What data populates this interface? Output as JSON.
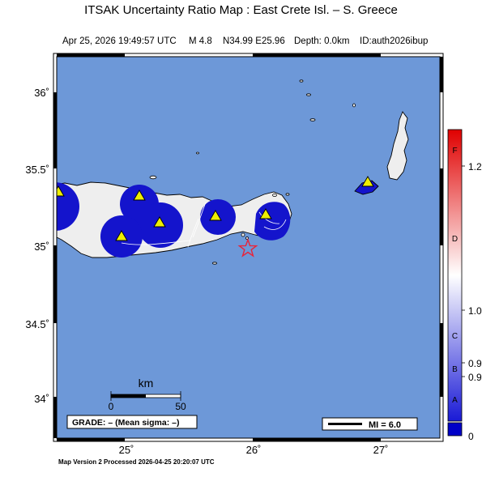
{
  "header": {
    "title": "ITSAK Uncertainty Ratio Map : East Crete Isl. – S. Greece",
    "datetime": "Apr 25, 2026 19:49:57 UTC",
    "magnitude": "M 4.8",
    "location": "N34.99 E25.96",
    "depth": "Depth: 0.0km",
    "event_id": "ID:auth2026ibup"
  },
  "map": {
    "lat_labels": [
      "36˚",
      "35.5˚",
      "35˚",
      "34.5˚",
      "34˚"
    ],
    "lon_labels": [
      "25˚",
      "26˚",
      "27˚"
    ],
    "sea_color": "#6d98d8",
    "land_color": "#eeeeee",
    "uncertainty_color": "#1414cc",
    "stations": [
      {
        "name": "station-triangle"
      },
      {
        "name": "station-triangle"
      },
      {
        "name": "station-triangle"
      },
      {
        "name": "station-triangle"
      },
      {
        "name": "station-triangle"
      },
      {
        "name": "station-triangle"
      },
      {
        "name": "station-triangle"
      }
    ],
    "epicenter_icon": "star-icon"
  },
  "scalebar": {
    "unit": "km",
    "label_start": "0",
    "label_end": "50"
  },
  "grade": {
    "label": "GRADE: – (Mean sigma: –)"
  },
  "legend": {
    "mi_label": "MI = 6.0"
  },
  "colorbar": {
    "letters": [
      "F",
      "D",
      "C",
      "B",
      "A"
    ],
    "values": [
      "1.2",
      "1.0",
      "0.9",
      "0.9",
      "0"
    ],
    "colors": {
      "top": "#e00000",
      "mid": "#ffffff",
      "bottom": "#1a1ad6",
      "base": "#0000c8"
    }
  },
  "footer": {
    "text": "Map Version 2 Processed 2026-04-25 20:20:07 UTC"
  }
}
